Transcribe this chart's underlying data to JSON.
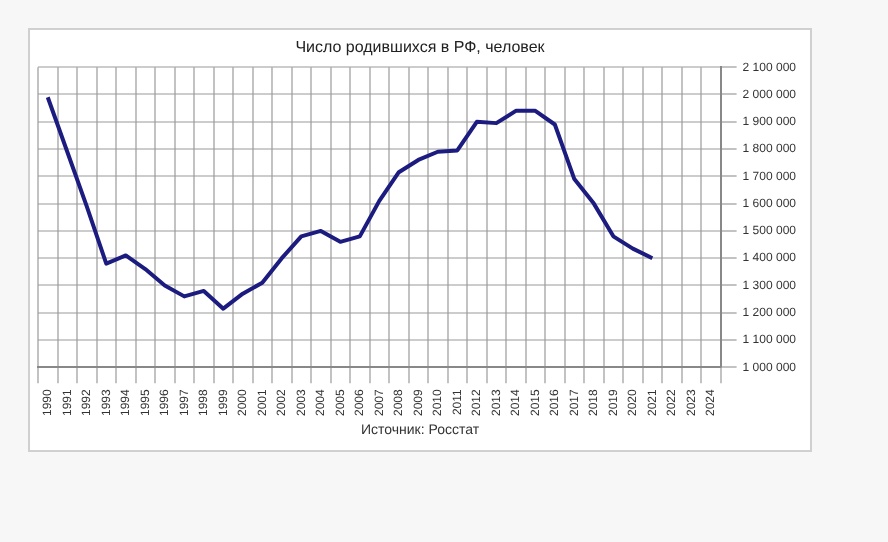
{
  "chart_data": {
    "type": "line",
    "title": "Число родившихся в РФ, человек",
    "categories": [
      "1990",
      "1991",
      "1992",
      "1993",
      "1994",
      "1995",
      "1996",
      "1997",
      "1998",
      "1999",
      "2000",
      "2001",
      "2002",
      "2003",
      "2004",
      "2005",
      "2006",
      "2007",
      "2008",
      "2009",
      "2010",
      "2011",
      "2012",
      "2013",
      "2014",
      "2015",
      "2016",
      "2017",
      "2018",
      "2019",
      "2020",
      "2021",
      "2022",
      "2023",
      "2024"
    ],
    "series": [
      {
        "color": "#1c1c80",
        "values": [
          1990000,
          1790000,
          1590000,
          1380000,
          1410000,
          1360000,
          1300000,
          1260000,
          1280000,
          1215000,
          1270000,
          1310000,
          1400000,
          1480000,
          1500000,
          1460000,
          1480000,
          1610000,
          1715000,
          1760000,
          1790000,
          1795000,
          1900000,
          1895000,
          1940000,
          1940000,
          1890000,
          1690000,
          1600000,
          1480000,
          1435000,
          1400000,
          null,
          null,
          null
        ]
      }
    ],
    "ylim": [
      1000000,
      2100000
    ],
    "yticks": [
      {
        "value": 1000000,
        "label": "1 000 000"
      },
      {
        "value": 1100000,
        "label": "1 100 000"
      },
      {
        "value": 1200000,
        "label": "1 200 000"
      },
      {
        "value": 1300000,
        "label": "1 300 000"
      },
      {
        "value": 1400000,
        "label": "1 400 000"
      },
      {
        "value": 1500000,
        "label": "1 500 000"
      },
      {
        "value": 1600000,
        "label": "1 600 000"
      },
      {
        "value": 1700000,
        "label": "1 700 000"
      },
      {
        "value": 1800000,
        "label": "1 800 000"
      },
      {
        "value": 1900000,
        "label": "1 900 000"
      },
      {
        "value": 2000000,
        "label": "2 000 000"
      },
      {
        "value": 2100000,
        "label": "2 100 000"
      }
    ],
    "grid": true,
    "marker": "none",
    "line_style": "solid",
    "annotations": [
      "Источник: Росстат"
    ]
  }
}
